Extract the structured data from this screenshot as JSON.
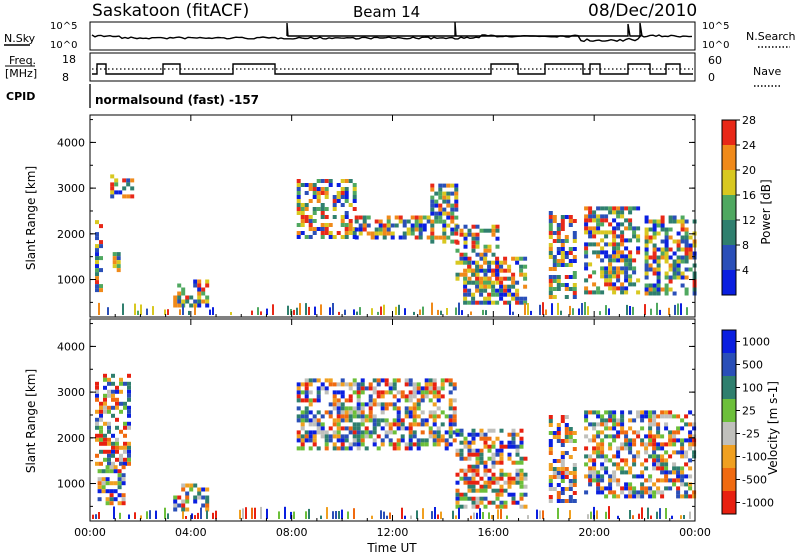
{
  "header": {
    "title": "Saskatoon (fitACF)",
    "beam": "Beam 14",
    "date": "08/Dec/2010"
  },
  "strip": {
    "nsky_label": "N.Sky",
    "nsearch_label": "N.Search",
    "nsky_ticks": [
      "10^5",
      "10^0"
    ],
    "nsearch_ticks": [
      "10^5",
      "10^0"
    ],
    "freq_label_1": "Freq.",
    "freq_label_2": "[MHz]",
    "freq_ticks": [
      "18",
      "8"
    ],
    "nave_ticks": [
      "60",
      "0"
    ],
    "nave_label": "Nave",
    "cpid_label": "CPID",
    "cpid_value": "normalsound (fast) -157"
  },
  "chart_data": [
    {
      "type": "heatmap",
      "name": "power",
      "xlabel": "",
      "ylabel": "Slant Range [km]",
      "xlim": [
        0,
        24
      ],
      "ylim": [
        180,
        4600
      ],
      "yticks": [
        "1000",
        "2000",
        "3000",
        "4000"
      ],
      "colorbar_label": "Power [dB]",
      "colorbar_ticks": [
        "4",
        "8",
        "12",
        "16",
        "20",
        "24",
        "28"
      ],
      "colors": [
        "#0a1fe0",
        "#2a4fb8",
        "#2f7f6e",
        "#4fa860",
        "#d8c820",
        "#f08a1a",
        "#e82818"
      ],
      "regions": [
        {
          "t0": 0.2,
          "t1": 0.5,
          "r0": 800,
          "r1": 2300
        },
        {
          "t0": 0.8,
          "t1": 1.6,
          "r0": 2800,
          "r1": 3300
        },
        {
          "t0": 0.9,
          "t1": 1.2,
          "r0": 1200,
          "r1": 1600
        },
        {
          "t0": 3.3,
          "t1": 4.6,
          "r0": 450,
          "r1": 1000
        },
        {
          "t0": 8.2,
          "t1": 10.5,
          "r0": 1900,
          "r1": 3200
        },
        {
          "t0": 10.5,
          "t1": 13.5,
          "r0": 1900,
          "r1": 2400
        },
        {
          "t0": 13.5,
          "t1": 14.5,
          "r0": 1800,
          "r1": 3100
        },
        {
          "t0": 14.5,
          "t1": 16.2,
          "r0": 900,
          "r1": 2200
        },
        {
          "t0": 14.8,
          "t1": 17.3,
          "r0": 500,
          "r1": 1500
        },
        {
          "t0": 18.2,
          "t1": 19.2,
          "r0": 600,
          "r1": 2500
        },
        {
          "t0": 19.6,
          "t1": 21.8,
          "r0": 700,
          "r1": 2600
        },
        {
          "t0": 22.0,
          "t1": 24.0,
          "r0": 700,
          "r1": 2400
        }
      ]
    },
    {
      "type": "heatmap",
      "name": "velocity",
      "xlabel": "Time UT",
      "ylabel": "Slant Range [km]",
      "xlim": [
        0,
        24
      ],
      "ylim": [
        180,
        4600
      ],
      "yticks": [
        "1000",
        "2000",
        "3000",
        "4000"
      ],
      "xticks": [
        "00:00",
        "04:00",
        "08:00",
        "12:00",
        "16:00",
        "20:00",
        "00:00"
      ],
      "colorbar_label": "Velocity [m s-1]",
      "colorbar_ticks": [
        "1000",
        "500",
        "100",
        "25",
        "-25",
        "-100",
        "-500",
        "-1000"
      ],
      "colors": [
        "#0a1fe0",
        "#2a4fb8",
        "#2f7f6e",
        "#6cbf3a",
        "#c0c0bc",
        "#f0a020",
        "#f06a10",
        "#e82010"
      ],
      "regions": [
        {
          "t0": 0.2,
          "t1": 1.6,
          "r0": 1400,
          "r1": 3400
        },
        {
          "t0": 0.3,
          "t1": 1.4,
          "r0": 600,
          "r1": 1400
        },
        {
          "t0": 3.3,
          "t1": 4.6,
          "r0": 450,
          "r1": 1000
        },
        {
          "t0": 8.2,
          "t1": 14.5,
          "r0": 1800,
          "r1": 3300
        },
        {
          "t0": 14.5,
          "t1": 17.3,
          "r0": 500,
          "r1": 2200
        },
        {
          "t0": 18.2,
          "t1": 19.2,
          "r0": 600,
          "r1": 2500
        },
        {
          "t0": 19.6,
          "t1": 24.0,
          "r0": 700,
          "r1": 2600
        }
      ]
    }
  ]
}
